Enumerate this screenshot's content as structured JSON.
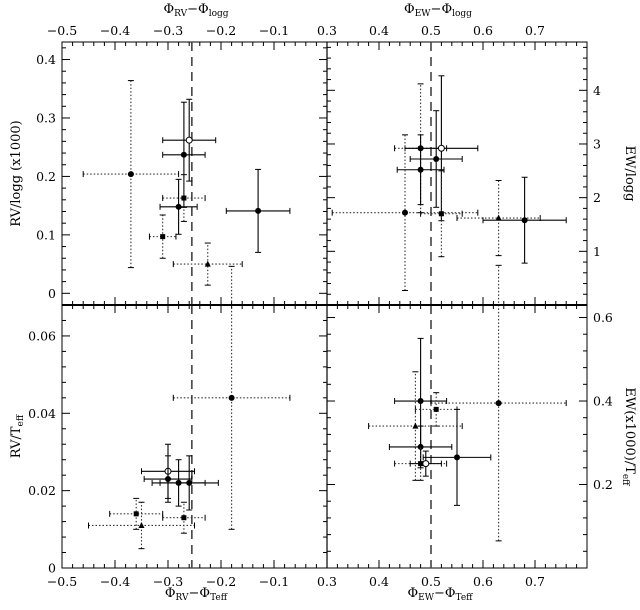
{
  "chart_data": [
    {
      "id": "top-left",
      "type": "scatter",
      "xlabel": "ΦRV − Φlogg",
      "xlabel_main": "Φ",
      "xlabel_parts": [
        "RV",
        "−Φ",
        "logg"
      ],
      "ylabel": "RV/logg (x1000)",
      "xlim": [
        -0.5,
        0.0
      ],
      "ylim": [
        -0.02,
        0.43
      ],
      "xticks": [
        -0.5,
        -0.4,
        -0.3,
        -0.2,
        -0.1
      ],
      "xtick_labels": [
        "−0.5",
        "−0.4",
        "−0.3",
        "−0.2",
        "−0.1"
      ],
      "yticks": [
        0,
        0.1,
        0.2,
        0.3,
        0.4
      ],
      "ytick_labels": [
        "0",
        "0.1",
        "0.2",
        "0.3",
        "0.4"
      ],
      "vline": -0.255,
      "points": [
        {
          "x": -0.37,
          "y": 0.204,
          "xerr": 0.09,
          "yerr": 0.16,
          "marker": "circle",
          "style": "dotted"
        },
        {
          "x": -0.26,
          "y": 0.262,
          "xerr": 0.05,
          "yerr": 0.07,
          "marker": "open-circle",
          "style": "solid"
        },
        {
          "x": -0.27,
          "y": 0.237,
          "xerr": 0.04,
          "yerr": 0.09,
          "marker": "circle",
          "style": "solid"
        },
        {
          "x": -0.27,
          "y": 0.163,
          "xerr": 0.04,
          "yerr": 0.04,
          "marker": "square",
          "style": "dotted"
        },
        {
          "x": -0.28,
          "y": 0.148,
          "xerr": 0.035,
          "yerr": 0.047,
          "marker": "circle",
          "style": "solid"
        },
        {
          "x": -0.13,
          "y": 0.141,
          "xerr": 0.06,
          "yerr": 0.071,
          "marker": "circle",
          "style": "solid"
        },
        {
          "x": -0.31,
          "y": 0.097,
          "xerr": 0.025,
          "yerr": 0.037,
          "marker": "square",
          "style": "dotted"
        },
        {
          "x": -0.225,
          "y": 0.05,
          "xerr": 0.065,
          "yerr": 0.036,
          "marker": "triangle",
          "style": "dotted"
        }
      ]
    },
    {
      "id": "top-right",
      "type": "scatter",
      "xlabel": "ΦEW − Φlogg",
      "xlabel_main": "Φ",
      "xlabel_parts": [
        "EW",
        "−Φ",
        "logg"
      ],
      "ylabel": "EW/logg",
      "xlim": [
        0.3,
        0.8
      ],
      "ylim": [
        0,
        4.9
      ],
      "xticks": [
        0.3,
        0.4,
        0.5,
        0.6,
        0.7
      ],
      "xtick_labels": [
        "0.3",
        "0.4",
        "0.5",
        "0.6",
        "0.7"
      ],
      "yticks": [
        1,
        2,
        3,
        4
      ],
      "ytick_labels": [
        "1",
        "2",
        "3",
        "4"
      ],
      "vline": 0.5,
      "points": [
        {
          "x": 0.48,
          "y": 2.92,
          "xerr": 0.05,
          "yerr": 1.2,
          "marker": "circle",
          "style": "dotted"
        },
        {
          "x": 0.52,
          "y": 2.92,
          "xerr": 0.07,
          "yerr": 1.35,
          "marker": "open-circle",
          "style": "solid"
        },
        {
          "x": 0.51,
          "y": 2.72,
          "xerr": 0.05,
          "yerr": 0.9,
          "marker": "circle",
          "style": "solid"
        },
        {
          "x": 0.48,
          "y": 2.52,
          "xerr": 0.045,
          "yerr": 0.65,
          "marker": "circle",
          "style": "solid"
        },
        {
          "x": 0.45,
          "y": 1.72,
          "xerr": 0.14,
          "yerr": 1.45,
          "marker": "circle",
          "style": "dotted"
        },
        {
          "x": 0.52,
          "y": 1.7,
          "xerr": 0.04,
          "yerr": 0.8,
          "marker": "square",
          "style": "dotted"
        },
        {
          "x": 0.63,
          "y": 1.62,
          "xerr": 0.08,
          "yerr": 0.7,
          "marker": "triangle",
          "style": "dotted"
        },
        {
          "x": 0.68,
          "y": 1.58,
          "xerr": 0.08,
          "yerr": 0.8,
          "marker": "circle",
          "style": "solid"
        }
      ]
    },
    {
      "id": "bottom-left",
      "type": "scatter",
      "xlabel": "ΦRV − ΦTeff",
      "xlabel_main": "Φ",
      "xlabel_parts": [
        "RV",
        "−Φ",
        "Teff"
      ],
      "ylabel": "RV/Teff",
      "ylabel_main": "RV/T",
      "ylabel_sub": "eff",
      "xlim": [
        -0.5,
        0.0
      ],
      "ylim": [
        0,
        0.068
      ],
      "xticks": [
        -0.5,
        -0.4,
        -0.3,
        -0.2,
        -0.1
      ],
      "xtick_labels": [
        "−0.5",
        "−0.4",
        "−0.3",
        "−0.2",
        "−0.1"
      ],
      "yticks": [
        0,
        0.02,
        0.04,
        0.06
      ],
      "ytick_labels": [
        "0",
        "0.02",
        "0.04",
        "0.06"
      ],
      "vline": -0.255,
      "points": [
        {
          "x": -0.18,
          "y": 0.044,
          "xerr": 0.11,
          "yerr": 0.034,
          "marker": "circle",
          "style": "dotted"
        },
        {
          "x": -0.3,
          "y": 0.025,
          "xerr": 0.05,
          "yerr": 0.007,
          "marker": "open-circle",
          "style": "solid"
        },
        {
          "x": -0.3,
          "y": 0.023,
          "xerr": 0.045,
          "yerr": 0.006,
          "marker": "circle",
          "style": "solid"
        },
        {
          "x": -0.28,
          "y": 0.022,
          "xerr": 0.05,
          "yerr": 0.006,
          "marker": "circle",
          "style": "solid"
        },
        {
          "x": -0.26,
          "y": 0.022,
          "xerr": 0.055,
          "yerr": 0.007,
          "marker": "circle",
          "style": "solid"
        },
        {
          "x": -0.36,
          "y": 0.014,
          "xerr": 0.05,
          "yerr": 0.004,
          "marker": "square",
          "style": "dotted"
        },
        {
          "x": -0.27,
          "y": 0.013,
          "xerr": 0.04,
          "yerr": 0.004,
          "marker": "square",
          "style": "dotted"
        },
        {
          "x": -0.35,
          "y": 0.011,
          "xerr": 0.1,
          "yerr": 0.006,
          "marker": "triangle",
          "style": "dotted"
        }
      ]
    },
    {
      "id": "bottom-right",
      "type": "scatter",
      "xlabel": "ΦEW − ΦTeff",
      "xlabel_main": "Φ",
      "xlabel_parts": [
        "EW",
        "−Φ",
        "Teff"
      ],
      "ylabel": "EW(x1000)/Teff",
      "ylabel_main": "EW(x1000)/T",
      "ylabel_sub": "eff",
      "xlim": [
        0.3,
        0.8
      ],
      "ylim": [
        0,
        0.63
      ],
      "xticks": [
        0.3,
        0.4,
        0.5,
        0.6,
        0.7
      ],
      "xtick_labels": [
        "0.3",
        "0.4",
        "0.5",
        "0.6",
        "0.7"
      ],
      "yticks": [
        0.2,
        0.4,
        0.6
      ],
      "ytick_labels": [
        "0.2",
        "0.4",
        "0.6"
      ],
      "vline": 0.5,
      "points": [
        {
          "x": 0.48,
          "y": 0.4,
          "xerr": 0.05,
          "yerr": 0.15,
          "marker": "circle",
          "style": "solid"
        },
        {
          "x": 0.63,
          "y": 0.395,
          "xerr": 0.13,
          "yerr": 0.33,
          "marker": "circle",
          "style": "dotted"
        },
        {
          "x": 0.51,
          "y": 0.38,
          "xerr": 0.04,
          "yerr": 0.04,
          "marker": "square",
          "style": "dotted"
        },
        {
          "x": 0.47,
          "y": 0.34,
          "xerr": 0.09,
          "yerr": 0.13,
          "marker": "triangle",
          "style": "dotted"
        },
        {
          "x": 0.48,
          "y": 0.29,
          "xerr": 0.06,
          "yerr": 0.05,
          "marker": "circle",
          "style": "solid"
        },
        {
          "x": 0.55,
          "y": 0.265,
          "xerr": 0.065,
          "yerr": 0.115,
          "marker": "circle",
          "style": "solid"
        },
        {
          "x": 0.48,
          "y": 0.25,
          "xerr": 0.05,
          "yerr": 0.04,
          "marker": "square",
          "style": "dotted"
        },
        {
          "x": 0.49,
          "y": 0.25,
          "xerr": 0.03,
          "yerr": 0.03,
          "marker": "open-circle",
          "style": "solid"
        }
      ]
    }
  ]
}
